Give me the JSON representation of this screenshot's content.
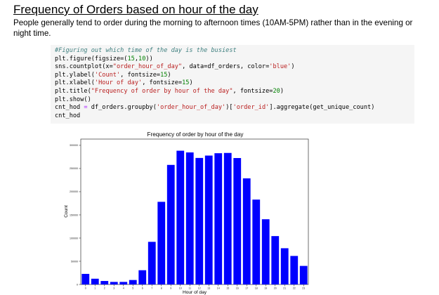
{
  "doc": {
    "heading": "Frequency of Orders based on hour of the day",
    "intro": "People generally tend to order during the morning to afternoon times (10AM-5PM) rather than in the evening or night time."
  },
  "code_lines": [
    [
      {
        "t": "#Figuring out which time of the day is the busiest",
        "c": "cm"
      }
    ],
    [
      {
        "t": "plt.figure(figsize=("
      },
      {
        "t": "15",
        "c": "nm"
      },
      {
        "t": ","
      },
      {
        "t": "10",
        "c": "nm"
      },
      {
        "t": "))"
      }
    ],
    [
      {
        "t": "sns.countplot(x="
      },
      {
        "t": "\"order_hour_of_day\"",
        "c": "st"
      },
      {
        "t": ", data=df_orders, color="
      },
      {
        "t": "'blue'",
        "c": "st"
      },
      {
        "t": ")"
      }
    ],
    [
      {
        "t": "plt.ylabel("
      },
      {
        "t": "'Count'",
        "c": "st"
      },
      {
        "t": ", fontsize="
      },
      {
        "t": "15",
        "c": "nm"
      },
      {
        "t": ")"
      }
    ],
    [
      {
        "t": "plt.xlabel("
      },
      {
        "t": "'Hour of day'",
        "c": "st"
      },
      {
        "t": ", fontsize="
      },
      {
        "t": "15",
        "c": "nm"
      },
      {
        "t": ")"
      }
    ],
    [
      {
        "t": "plt.title("
      },
      {
        "t": "\"Frequency of order by hour of the day\"",
        "c": "st"
      },
      {
        "t": ", fontsize="
      },
      {
        "t": "20",
        "c": "nm"
      },
      {
        "t": ")"
      }
    ],
    [
      {
        "t": "plt.show()"
      }
    ],
    [
      {
        "t": "cnt_hod "
      },
      {
        "t": "=",
        "c": "op"
      },
      {
        "t": " df_orders.groupby("
      },
      {
        "t": "'order_hour_of_day'",
        "c": "st"
      },
      {
        "t": ")["
      },
      {
        "t": "'order_id'",
        "c": "st"
      },
      {
        "t": "].aggregate(get_unique_count)"
      }
    ],
    [
      {
        "t": "cnt_hod"
      }
    ]
  ],
  "chart_data": {
    "type": "bar",
    "title": "Frequency of order by hour of the day",
    "xlabel": "Hour of day",
    "ylabel": "Count",
    "categories": [
      "0",
      "1",
      "2",
      "3",
      "4",
      "5",
      "6",
      "7",
      "8",
      "9",
      "10",
      "11",
      "12",
      "13",
      "14",
      "15",
      "16",
      "17",
      "18",
      "19",
      "20",
      "21",
      "22",
      "23"
    ],
    "values": [
      22800,
      12400,
      7500,
      5500,
      5500,
      9600,
      30700,
      91900,
      178200,
      257800,
      288400,
      284700,
      272800,
      277900,
      283000,
      283600,
      272600,
      228800,
      183000,
      140600,
      104300,
      78100,
      61500,
      40000
    ],
    "yticks": [
      0,
      50000,
      100000,
      150000,
      200000,
      250000,
      300000
    ],
    "ytick_labels": [
      "0",
      "50000",
      "100000",
      "150000",
      "200000",
      "250000",
      "300000"
    ],
    "ylim": [
      0,
      300000
    ],
    "bar_color": "#0000ff",
    "grid": false,
    "legend": "none"
  }
}
